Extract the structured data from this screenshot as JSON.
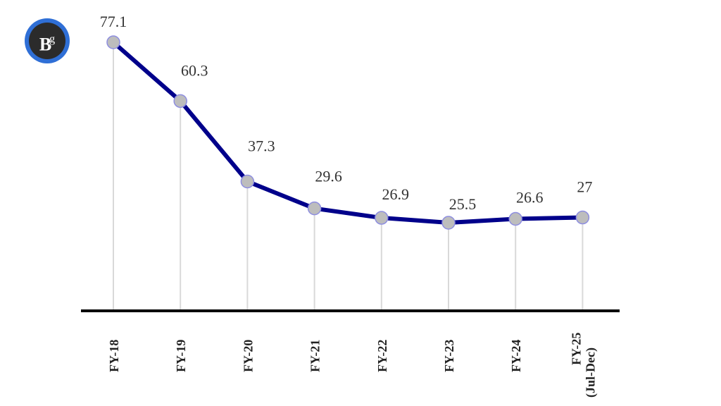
{
  "logo": {
    "text": "B",
    "superscript": "g",
    "ring_color": "#2f6fd6",
    "bg_color": "#2b2b2b"
  },
  "chart_data": {
    "type": "line",
    "title": "",
    "xlabel": "",
    "ylabel": "",
    "categories": [
      "FY-18",
      "FY-19",
      "FY-20",
      "FY-21",
      "FY-22",
      "FY-23",
      "FY-24",
      "FY-25 (Jul-Dec)"
    ],
    "category_lines": [
      [
        "FY-18"
      ],
      [
        "FY-19"
      ],
      [
        "FY-20"
      ],
      [
        "FY-21"
      ],
      [
        "FY-22"
      ],
      [
        "FY-23"
      ],
      [
        "FY-24"
      ],
      [
        "FY-25",
        "(Jul-Dec)"
      ]
    ],
    "series": [
      {
        "name": "Series",
        "values": [
          77.1,
          60.3,
          37.3,
          29.6,
          26.9,
          25.5,
          26.6,
          27
        ],
        "color": "#00008b",
        "marker_color": "#bdbdbd"
      }
    ],
    "data_labels": [
      "77.1",
      "60.3",
      "37.3",
      "29.6",
      "26.9",
      "25.5",
      "26.6",
      "27"
    ],
    "ylim": [
      0,
      80
    ],
    "grid": false,
    "drop_lines": true,
    "legend": "none"
  }
}
